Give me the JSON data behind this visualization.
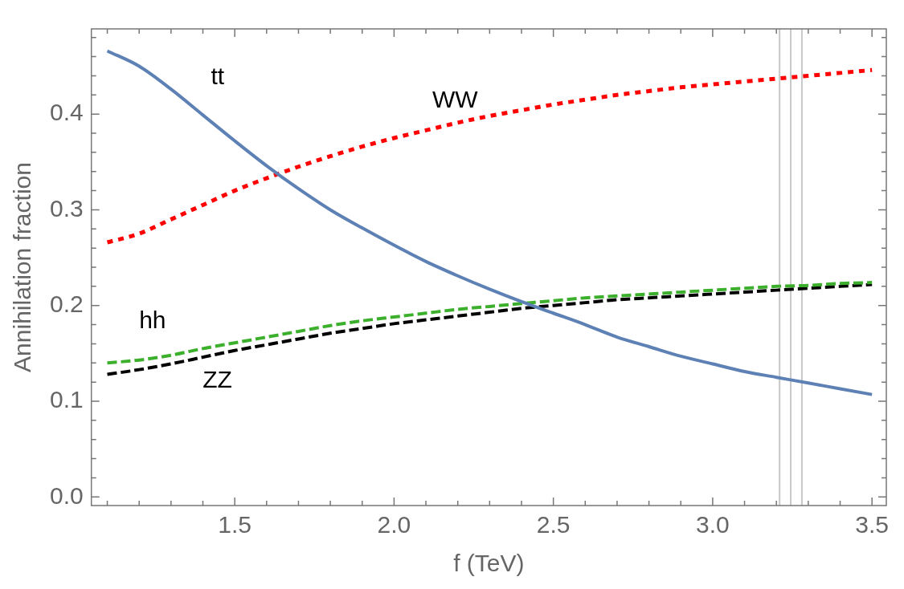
{
  "chart_data": {
    "type": "line",
    "xlabel": "f (TeV)",
    "ylabel": "Annihilation fraction",
    "x": [
      1.1,
      1.2,
      1.3,
      1.4,
      1.5,
      1.6,
      1.7,
      1.8,
      1.9,
      2.0,
      2.1,
      2.2,
      2.3,
      2.4,
      2.5,
      2.6,
      2.7,
      2.8,
      2.9,
      3.0,
      3.1,
      3.2,
      3.3,
      3.4,
      3.5
    ],
    "series": [
      {
        "name": "tt",
        "color": "#5e81b5",
        "line_style": "solid",
        "values": [
          0.466,
          0.45,
          0.426,
          0.399,
          0.372,
          0.346,
          0.322,
          0.3,
          0.281,
          0.263,
          0.246,
          0.231,
          0.217,
          0.204,
          0.192,
          0.18,
          0.167,
          0.157,
          0.147,
          0.139,
          0.131,
          0.125,
          0.119,
          0.113,
          0.107
        ]
      },
      {
        "name": "WW",
        "color": "#ff0000",
        "line_style": "dotted",
        "values": [
          0.266,
          0.275,
          0.29,
          0.305,
          0.32,
          0.333,
          0.345,
          0.356,
          0.366,
          0.375,
          0.383,
          0.391,
          0.398,
          0.404,
          0.41,
          0.415,
          0.42,
          0.424,
          0.428,
          0.431,
          0.434,
          0.437,
          0.44,
          0.443,
          0.446
        ]
      },
      {
        "name": "hh",
        "color": "#3cb02c",
        "line_style": "dashed",
        "values": [
          0.14,
          0.143,
          0.148,
          0.155,
          0.161,
          0.167,
          0.173,
          0.179,
          0.184,
          0.188,
          0.192,
          0.196,
          0.199,
          0.202,
          0.205,
          0.208,
          0.21,
          0.212,
          0.214,
          0.216,
          0.218,
          0.22,
          0.221,
          0.223,
          0.224
        ]
      },
      {
        "name": "ZZ",
        "color": "#000000",
        "line_style": "dashed",
        "values": [
          0.128,
          0.133,
          0.139,
          0.146,
          0.153,
          0.159,
          0.165,
          0.171,
          0.176,
          0.181,
          0.185,
          0.189,
          0.193,
          0.197,
          0.2,
          0.203,
          0.206,
          0.208,
          0.21,
          0.212,
          0.214,
          0.216,
          0.218,
          0.22,
          0.222
        ]
      }
    ],
    "xlim": [
      1.05,
      3.545
    ],
    "xticks": [
      {
        "value": 1.1,
        "label": null
      },
      {
        "value": 1.2,
        "label": null
      },
      {
        "value": 1.3,
        "label": null
      },
      {
        "value": 1.4,
        "label": null
      },
      {
        "value": 1.5,
        "label": "1.5"
      },
      {
        "value": 1.6,
        "label": null
      },
      {
        "value": 1.7,
        "label": null
      },
      {
        "value": 1.8,
        "label": null
      },
      {
        "value": 1.9,
        "label": null
      },
      {
        "value": 2.0,
        "label": "2.0"
      },
      {
        "value": 2.1,
        "label": null
      },
      {
        "value": 2.2,
        "label": null
      },
      {
        "value": 2.3,
        "label": null
      },
      {
        "value": 2.4,
        "label": null
      },
      {
        "value": 2.5,
        "label": "2.5"
      },
      {
        "value": 2.6,
        "label": null
      },
      {
        "value": 2.7,
        "label": null
      },
      {
        "value": 2.8,
        "label": null
      },
      {
        "value": 2.9,
        "label": null
      },
      {
        "value": 3.0,
        "label": "3.0"
      },
      {
        "value": 3.1,
        "label": null
      },
      {
        "value": 3.2,
        "label": null
      },
      {
        "value": 3.3,
        "label": null
      },
      {
        "value": 3.4,
        "label": null
      },
      {
        "value": 3.5,
        "label": "3.5"
      }
    ],
    "ylim": [
      -0.009,
      0.489
    ],
    "yticks": [
      {
        "value": 0,
        "label": "0.0"
      },
      {
        "value": 0.02,
        "label": null
      },
      {
        "value": 0.04,
        "label": null
      },
      {
        "value": 0.06,
        "label": null
      },
      {
        "value": 0.08,
        "label": null
      },
      {
        "value": 0.1,
        "label": "0.1"
      },
      {
        "value": 0.12,
        "label": null
      },
      {
        "value": 0.14,
        "label": null
      },
      {
        "value": 0.16,
        "label": null
      },
      {
        "value": 0.18,
        "label": null
      },
      {
        "value": 0.2,
        "label": "0.2"
      },
      {
        "value": 0.22,
        "label": null
      },
      {
        "value": 0.24,
        "label": null
      },
      {
        "value": 0.26,
        "label": null
      },
      {
        "value": 0.28,
        "label": null
      },
      {
        "value": 0.3,
        "label": "0.3"
      },
      {
        "value": 0.32,
        "label": null
      },
      {
        "value": 0.34,
        "label": null
      },
      {
        "value": 0.36,
        "label": null
      },
      {
        "value": 0.38,
        "label": null
      },
      {
        "value": 0.4,
        "label": "0.4"
      },
      {
        "value": 0.42,
        "label": null
      },
      {
        "value": 0.44,
        "label": null
      },
      {
        "value": 0.46,
        "label": null
      },
      {
        "value": 0.48,
        "label": null
      }
    ],
    "ref_lines": [
      {
        "axis": "x",
        "value": 3.21,
        "color": "#c8c8c8"
      },
      {
        "axis": "x",
        "value": 3.245,
        "color": "#c8c8c8"
      },
      {
        "axis": "x",
        "value": 3.28,
        "color": "#c8c8c8"
      }
    ],
    "grid": false,
    "legend": false,
    "marker": "none"
  }
}
